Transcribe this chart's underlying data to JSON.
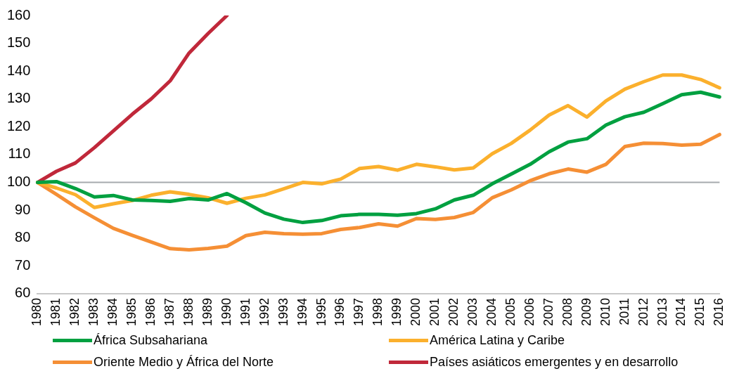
{
  "chart_data": {
    "type": "line",
    "categories": [
      "1980",
      "1981",
      "1982",
      "1983",
      "1984",
      "1985",
      "1986",
      "1987",
      "1988",
      "1989",
      "1990",
      "1991",
      "1992",
      "1993",
      "1994",
      "1995",
      "1996",
      "1997",
      "1998",
      "1999",
      "2000",
      "2001",
      "2002",
      "2003",
      "2004",
      "2005",
      "2006",
      "2007",
      "2008",
      "2009",
      "2010",
      "2011",
      "2012",
      "2013",
      "2014",
      "2015",
      "2016"
    ],
    "series": [
      {
        "name": "África Subsahariana",
        "color": "#00a040",
        "values": [
          100,
          100.3,
          97.8,
          94.8,
          95.3,
          93.7,
          93.5,
          93.2,
          94.2,
          93.7,
          96,
          92.7,
          89,
          86.8,
          85.6,
          86.3,
          88,
          88.5,
          88.5,
          88.2,
          88.8,
          90.5,
          93.7,
          95.4,
          99.5,
          103,
          106.5,
          111,
          114.5,
          115.7,
          120.6,
          123.6,
          125.2,
          128.3,
          131.5,
          132.4,
          130.7
        ]
      },
      {
        "name": "América Latina y Caribe",
        "color": "#fbb02d",
        "values": [
          100,
          98,
          95.6,
          91,
          92.3,
          93.5,
          95.4,
          96.6,
          95.7,
          94.5,
          92.5,
          94.3,
          95.5,
          97.7,
          100,
          99.5,
          101.2,
          105,
          105.7,
          104.4,
          106.5,
          105.6,
          104.5,
          105.2,
          110.3,
          114,
          118.8,
          124.2,
          127.6,
          123.5,
          129.3,
          133.5,
          136.2,
          138.6,
          138.6,
          137,
          134
        ]
      },
      {
        "name": "Oriente Medio y África del Norte",
        "color": "#f58f35",
        "values": [
          100,
          95.7,
          91.2,
          87.3,
          83.5,
          81,
          78.6,
          76.2,
          75.8,
          76.3,
          77.1,
          80.9,
          82.1,
          81.6,
          81.4,
          81.6,
          83.1,
          83.8,
          85.1,
          84.3,
          87,
          86.7,
          87.4,
          89.2,
          94.5,
          97.3,
          100.6,
          103.1,
          104.8,
          103.7,
          106.5,
          112.9,
          114.1,
          114,
          113.4,
          113.7,
          117.2
        ]
      },
      {
        "name": "Países asiáticos emergentes y en desarrollo",
        "color": "#c0283a",
        "values": [
          100,
          104,
          107,
          112.5,
          118.5,
          124.5,
          130,
          136.5,
          146.5,
          153.5,
          160,
          null,
          null,
          null,
          null,
          null,
          null,
          null,
          null,
          null,
          null,
          null,
          null,
          null,
          null,
          null,
          null,
          null,
          null,
          null,
          null,
          null,
          null,
          null,
          null,
          null,
          null
        ]
      }
    ],
    "ylim": [
      60,
      160
    ],
    "yticks": [
      60,
      70,
      80,
      90,
      100,
      110,
      120,
      130,
      140,
      150,
      160
    ],
    "ref_lines": [
      {
        "axis": "y",
        "value": 100,
        "color": "#a6aaad"
      }
    ],
    "grid": false,
    "legend": "bottom",
    "marker": "none",
    "line_style": "solid"
  }
}
